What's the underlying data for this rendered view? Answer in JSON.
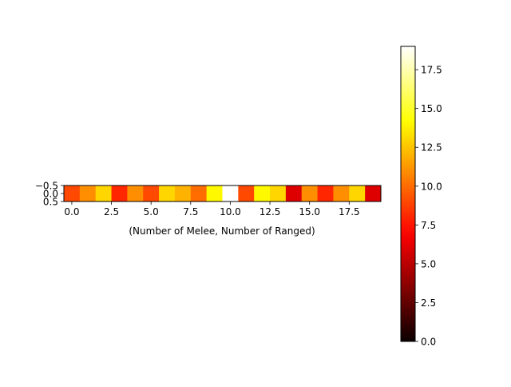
{
  "chart_data": {
    "type": "heatmap",
    "title": "",
    "xlabel": "(Number of Melee, Number of Ranged)",
    "ylabel": "",
    "colormap": "hot",
    "values": [
      [
        9,
        11,
        13,
        8,
        11,
        9,
        13,
        12,
        10,
        14,
        19,
        9,
        14,
        13,
        6,
        11,
        8,
        11,
        13,
        6
      ]
    ],
    "xlim": [
      -0.5,
      19.5
    ],
    "ylim": [
      0.5,
      -0.5
    ],
    "x_ticks": [
      0,
      2.5,
      5,
      7.5,
      10,
      12.5,
      15,
      17.5
    ],
    "x_tick_labels": [
      "0.0",
      "2.5",
      "5.0",
      "7.5",
      "10.0",
      "12.5",
      "15.0",
      "17.5"
    ],
    "y_ticks": [
      -0.5,
      0,
      0.5
    ],
    "y_tick_labels": [
      "−0.5",
      "0.0",
      "0.5"
    ],
    "colorbar": {
      "range": [
        0,
        19
      ],
      "ticks": [
        0,
        2.5,
        5,
        7.5,
        10,
        12.5,
        15,
        17.5
      ],
      "tick_labels": [
        "0.0",
        "2.5",
        "5.0",
        "7.5",
        "10.0",
        "12.5",
        "15.0",
        "17.5"
      ]
    },
    "grid": false
  }
}
